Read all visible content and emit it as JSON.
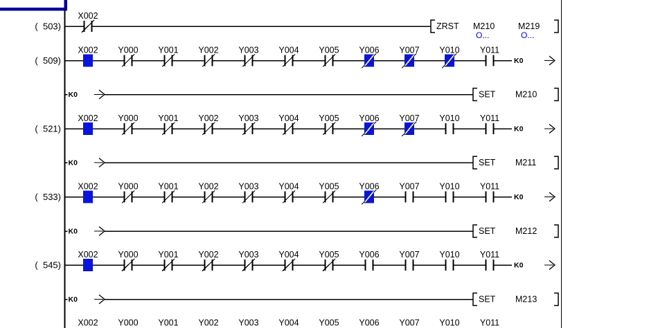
{
  "window": {
    "corner_color": "#000099",
    "background": "#ffffff"
  },
  "colors": {
    "line": "#000000",
    "energized_fill": "#0a14dc",
    "energized_slash": "#ffff73",
    "comment_text": "#0000ff"
  },
  "rows": [
    {
      "type": "rung",
      "step": "(  503)",
      "contacts": [
        {
          "device": "X002",
          "contact": "nc",
          "on": false
        }
      ],
      "instruction": {
        "op": "ZRST",
        "operands": [
          "M210",
          "M219"
        ],
        "comments": [
          "O...",
          "O..."
        ]
      }
    },
    {
      "type": "rung",
      "step": "(  509)",
      "contacts": [
        {
          "device": "X002",
          "contact": "no",
          "on": true
        },
        {
          "device": "Y000",
          "contact": "nc",
          "on": false
        },
        {
          "device": "Y001",
          "contact": "nc",
          "on": false
        },
        {
          "device": "Y002",
          "contact": "nc",
          "on": false
        },
        {
          "device": "Y003",
          "contact": "nc",
          "on": false
        },
        {
          "device": "Y004",
          "contact": "nc",
          "on": false
        },
        {
          "device": "Y005",
          "contact": "nc",
          "on": false
        },
        {
          "device": "Y006",
          "contact": "nc",
          "on": true
        },
        {
          "device": "Y007",
          "contact": "nc",
          "on": true
        },
        {
          "device": "Y010",
          "contact": "nc",
          "on": true
        },
        {
          "device": "Y011",
          "contact": "no",
          "on": false
        }
      ],
      "compare_out": "K0"
    },
    {
      "type": "wrap",
      "continuation": "K0",
      "instruction": {
        "op": "SET",
        "operands": [
          "M210"
        ],
        "comments": []
      }
    },
    {
      "type": "rung",
      "step": "(  521)",
      "contacts": [
        {
          "device": "X002",
          "contact": "no",
          "on": true
        },
        {
          "device": "Y000",
          "contact": "nc",
          "on": false
        },
        {
          "device": "Y001",
          "contact": "nc",
          "on": false
        },
        {
          "device": "Y002",
          "contact": "nc",
          "on": false
        },
        {
          "device": "Y003",
          "contact": "nc",
          "on": false
        },
        {
          "device": "Y004",
          "contact": "nc",
          "on": false
        },
        {
          "device": "Y005",
          "contact": "nc",
          "on": false
        },
        {
          "device": "Y006",
          "contact": "nc",
          "on": true
        },
        {
          "device": "Y007",
          "contact": "nc",
          "on": true
        },
        {
          "device": "Y010",
          "contact": "no",
          "on": false
        },
        {
          "device": "Y011",
          "contact": "no",
          "on": false
        }
      ],
      "compare_out": "K0"
    },
    {
      "type": "wrap",
      "continuation": "K0",
      "instruction": {
        "op": "SET",
        "operands": [
          "M211"
        ],
        "comments": []
      }
    },
    {
      "type": "rung",
      "step": "(  533)",
      "contacts": [
        {
          "device": "X002",
          "contact": "no",
          "on": true
        },
        {
          "device": "Y000",
          "contact": "nc",
          "on": false
        },
        {
          "device": "Y001",
          "contact": "nc",
          "on": false
        },
        {
          "device": "Y002",
          "contact": "nc",
          "on": false
        },
        {
          "device": "Y003",
          "contact": "nc",
          "on": false
        },
        {
          "device": "Y004",
          "contact": "nc",
          "on": false
        },
        {
          "device": "Y005",
          "contact": "nc",
          "on": false
        },
        {
          "device": "Y006",
          "contact": "nc",
          "on": true
        },
        {
          "device": "Y007",
          "contact": "no",
          "on": false
        },
        {
          "device": "Y010",
          "contact": "no",
          "on": false
        },
        {
          "device": "Y011",
          "contact": "no",
          "on": false
        }
      ],
      "compare_out": "K0"
    },
    {
      "type": "wrap",
      "continuation": "K0",
      "instruction": {
        "op": "SET",
        "operands": [
          "M212"
        ],
        "comments": []
      }
    },
    {
      "type": "rung",
      "step": "(  545)",
      "contacts": [
        {
          "device": "X002",
          "contact": "no",
          "on": true
        },
        {
          "device": "Y000",
          "contact": "nc",
          "on": false
        },
        {
          "device": "Y001",
          "contact": "nc",
          "on": false
        },
        {
          "device": "Y002",
          "contact": "nc",
          "on": false
        },
        {
          "device": "Y003",
          "contact": "nc",
          "on": false
        },
        {
          "device": "Y004",
          "contact": "nc",
          "on": false
        },
        {
          "device": "Y005",
          "contact": "nc",
          "on": false
        },
        {
          "device": "Y006",
          "contact": "no",
          "on": false
        },
        {
          "device": "Y007",
          "contact": "no",
          "on": false
        },
        {
          "device": "Y010",
          "contact": "no",
          "on": false
        },
        {
          "device": "Y011",
          "contact": "no",
          "on": false
        }
      ],
      "compare_out": "K0"
    },
    {
      "type": "wrap",
      "continuation": "K0",
      "instruction": {
        "op": "SET",
        "operands": [
          "M213"
        ],
        "comments": []
      }
    },
    {
      "type": "partial",
      "labels": [
        "X002",
        "Y000",
        "Y001",
        "Y002",
        "Y003",
        "Y004",
        "Y005",
        "Y006",
        "Y007",
        "Y010",
        "Y011"
      ]
    }
  ]
}
